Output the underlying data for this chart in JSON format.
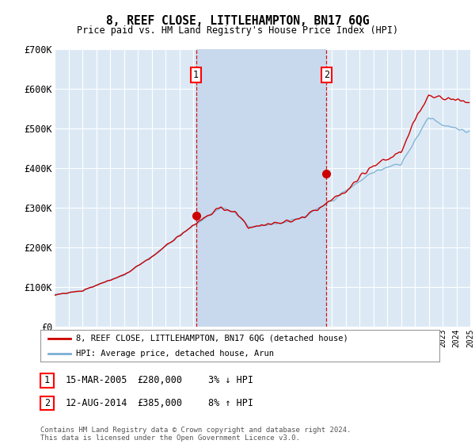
{
  "title": "8, REEF CLOSE, LITTLEHAMPTON, BN17 6QG",
  "subtitle": "Price paid vs. HM Land Registry's House Price Index (HPI)",
  "ylim": [
    0,
    700000
  ],
  "yticks": [
    0,
    100000,
    200000,
    300000,
    400000,
    500000,
    600000,
    700000
  ],
  "ytick_labels": [
    "£0",
    "£100K",
    "£200K",
    "£300K",
    "£400K",
    "£500K",
    "£600K",
    "£700K"
  ],
  "bg_color": "#dce9f5",
  "highlight_color": "#c8d9ee",
  "grid_color": "#ffffff",
  "sale1_year": 2005.208,
  "sale1_price": 280000,
  "sale2_year": 2014.625,
  "sale2_price": 385000,
  "legend_property": "8, REEF CLOSE, LITTLEHAMPTON, BN17 6QG (detached house)",
  "legend_hpi": "HPI: Average price, detached house, Arun",
  "property_color": "#cc0000",
  "hpi_color": "#7bafd4",
  "x_start_year": 1995,
  "x_end_year": 2025,
  "copyright": "Contains HM Land Registry data © Crown copyright and database right 2024.\nThis data is licensed under the Open Government Licence v3.0."
}
